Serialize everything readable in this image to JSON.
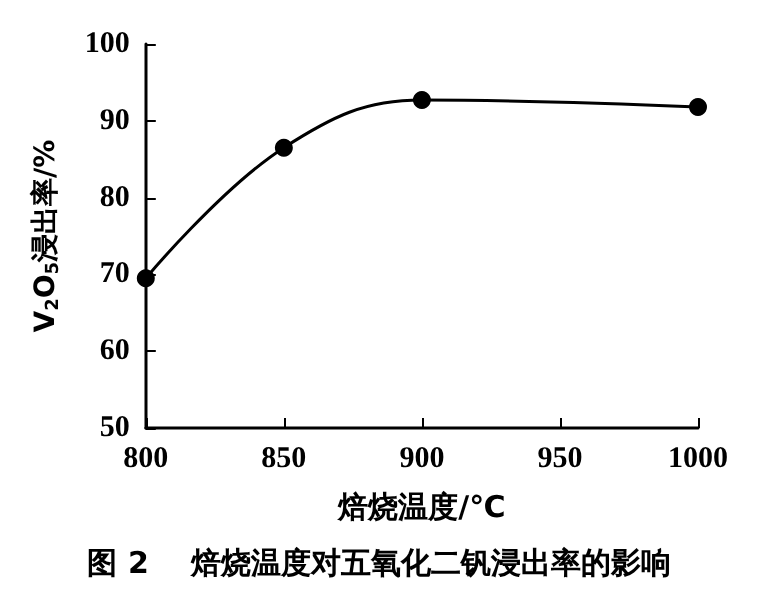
{
  "chart_data": {
    "type": "line",
    "title": "图 2    焙烧温度对五氧化二钒浸出率的影响",
    "xlabel": "焙烧温度/℃",
    "ylabel": "V$_{2}$O$_{5}$浸出率/%",
    "x": [
      800,
      850,
      900,
      1000
    ],
    "series": [
      {
        "color": "#000000",
        "values": [
          69.5,
          86.5,
          92.7,
          91.8
        ]
      }
    ],
    "xlim": [
      800,
      1000
    ],
    "xticks": [
      800,
      850,
      900,
      950,
      1000
    ],
    "ylim": [
      50,
      100
    ],
    "yticks": [
      50,
      60,
      70,
      80,
      90,
      100
    ],
    "grid": false,
    "marker": "circle",
    "line_style": "solid"
  }
}
